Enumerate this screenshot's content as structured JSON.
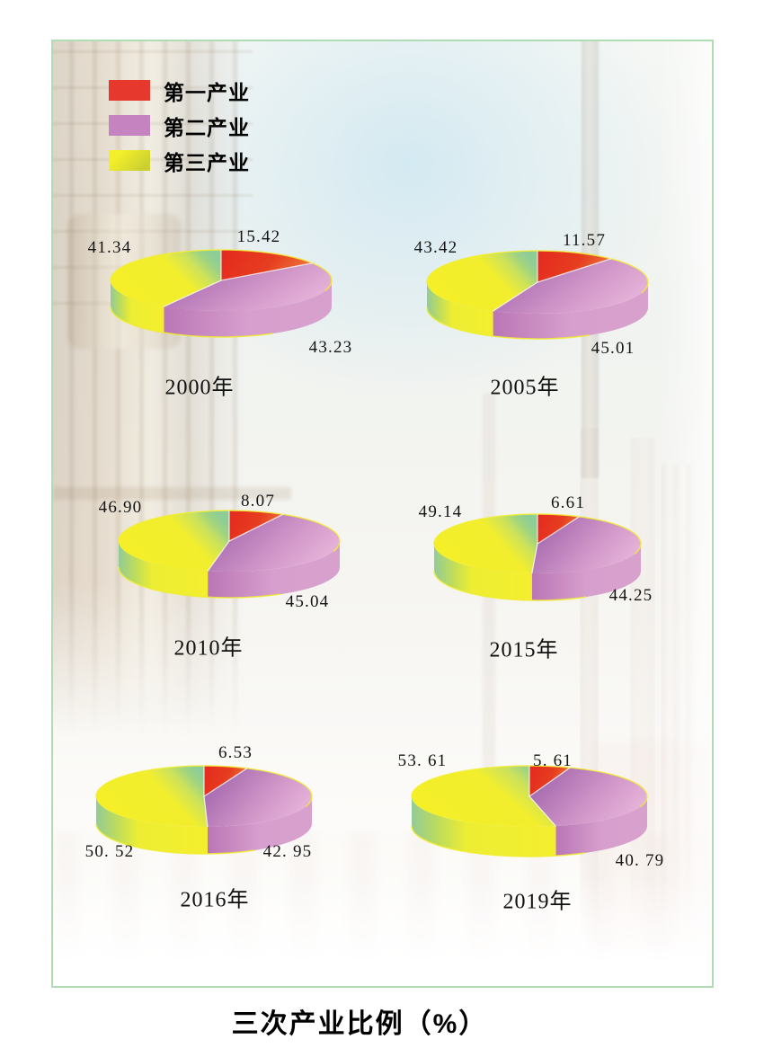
{
  "title": "三次产业比例（%）",
  "legend": {
    "items": [
      {
        "id": "first",
        "label": "第一产业",
        "color": "#e6382c"
      },
      {
        "id": "second",
        "label": "第二产业",
        "color": "#c583bf"
      },
      {
        "id": "third",
        "label": "第三产业",
        "color": "#f2ee2b",
        "color2": "#cbd02f"
      }
    ]
  },
  "chart_data": [
    {
      "type": "pie",
      "year": "2000年",
      "categories": [
        "第一产业",
        "第二产业",
        "第三产业"
      ],
      "values": [
        15.42,
        43.23,
        41.34
      ],
      "labels": {
        "first": "15.42",
        "second": "43.23",
        "third": "41.34"
      }
    },
    {
      "type": "pie",
      "year": "2005年",
      "categories": [
        "第一产业",
        "第二产业",
        "第三产业"
      ],
      "values": [
        11.57,
        45.01,
        43.42
      ],
      "labels": {
        "first": "11.57",
        "second": "45.01",
        "third": "43.42"
      }
    },
    {
      "type": "pie",
      "year": "2010年",
      "categories": [
        "第一产业",
        "第二产业",
        "第三产业"
      ],
      "values": [
        8.07,
        45.04,
        46.9
      ],
      "labels": {
        "first": "8.07",
        "second": "45.04",
        "third": "46.90"
      }
    },
    {
      "type": "pie",
      "year": "2015年",
      "categories": [
        "第一产业",
        "第二产业",
        "第三产业"
      ],
      "values": [
        6.61,
        44.25,
        49.14
      ],
      "labels": {
        "first": "6.61",
        "second": "44.25",
        "third": "49.14"
      }
    },
    {
      "type": "pie",
      "year": "2016年",
      "categories": [
        "第一产业",
        "第二产业",
        "第三产业"
      ],
      "values": [
        6.53,
        42.95,
        50.52
      ],
      "labels": {
        "first": "6.53",
        "second": "42. 95",
        "third": "50. 52"
      }
    },
    {
      "type": "pie",
      "year": "2019年",
      "categories": [
        "第一产业",
        "第二产业",
        "第三产业"
      ],
      "values": [
        5.61,
        40.79,
        53.61
      ],
      "labels": {
        "first": "5. 61",
        "second": "40. 79",
        "third": "53. 61"
      }
    }
  ]
}
